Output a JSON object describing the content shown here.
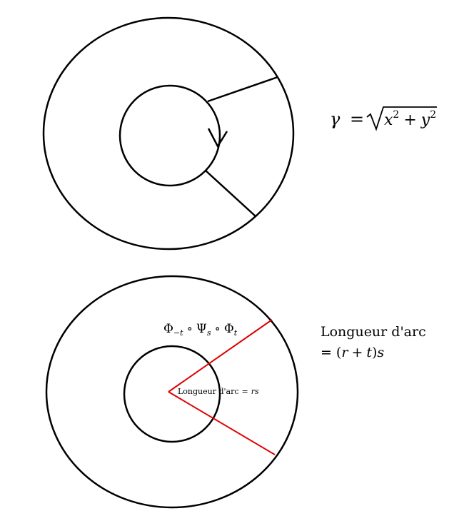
{
  "top_figure": {
    "formula": {
      "lhs": "γ",
      "eq": "=",
      "radicand_x": "x",
      "radicand_x_exp": "2",
      "plus": "+",
      "radicand_y": "y",
      "radicand_y_exp": "2"
    },
    "colors": {
      "stroke": "#000000"
    }
  },
  "bottom_figure": {
    "composition": {
      "phi1": "Φ",
      "phi1_sub": "−t",
      "circ1": "∘",
      "psi": "Ψ",
      "psi_sub": "s",
      "circ2": "∘",
      "phi2": "Φ",
      "phi2_sub": "t"
    },
    "inner_label": {
      "text": "Longueur d'arc",
      "eq": "=",
      "value": "rs"
    },
    "outer_label": {
      "line1": "Longueur d'arc",
      "eq": "=",
      "open": "(",
      "r": "r",
      "plus": "+",
      "t": "t",
      "close": ")",
      "s": "s"
    },
    "colors": {
      "stroke": "#000000",
      "radius": "#e00000"
    }
  }
}
